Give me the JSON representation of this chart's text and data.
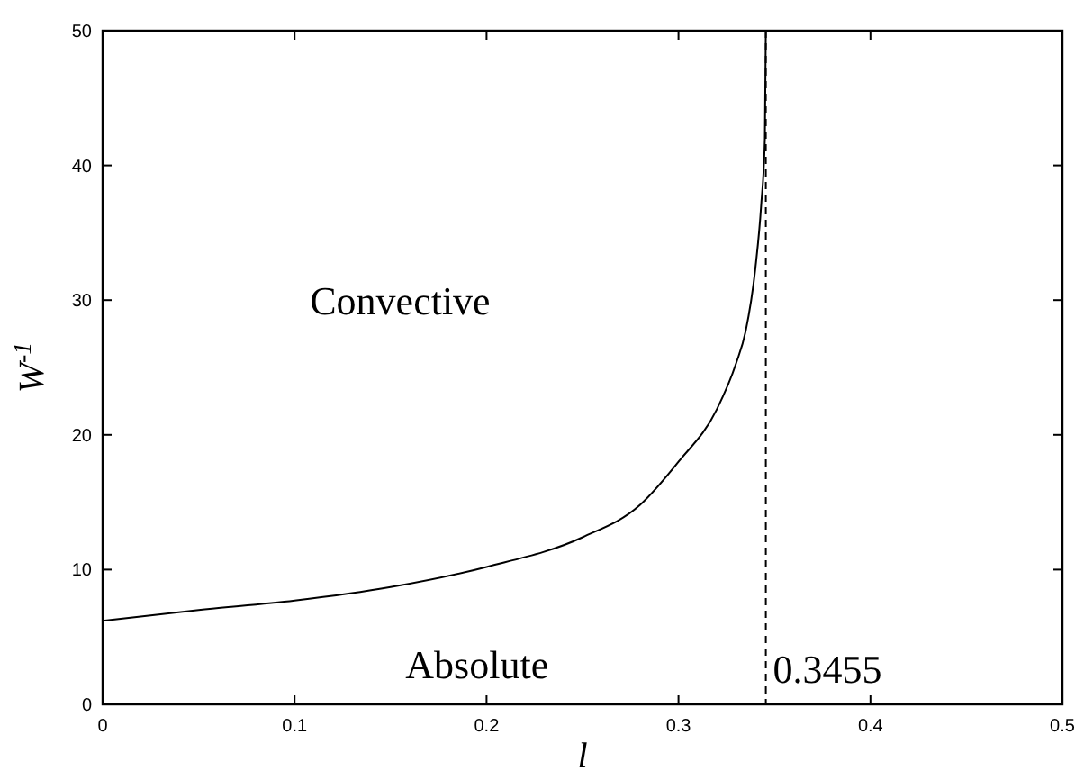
{
  "chart_data": {
    "type": "line",
    "xlabel": "l",
    "ylabel": "W$^{-1}$",
    "x": [
      0,
      0.05,
      0.1,
      0.15,
      0.2,
      0.25,
      0.28,
      0.3,
      0.32,
      0.33,
      0.335,
      0.34,
      0.343,
      0.345,
      0.3455
    ],
    "series": [
      {
        "color": "#000000",
        "values": [
          6.2,
          7.0,
          7.7,
          8.7,
          10.2,
          12.4,
          14.8,
          18.0,
          21.9,
          25.3,
          27.7,
          32.3,
          36.9,
          42,
          50
        ]
      }
    ],
    "xlim": [
      0,
      0.5
    ],
    "ylim": [
      0,
      50
    ],
    "xticks": [
      0,
      0.1,
      0.2,
      0.3,
      0.4,
      0.5
    ],
    "yticks": [
      0,
      10,
      20,
      30,
      40,
      50
    ],
    "ref_lines": [
      {
        "axis": "x",
        "value": 0.3455,
        "label": "0.3455",
        "line_style": "dashed",
        "color": "#000000"
      }
    ],
    "annotations": [
      "Convective",
      "Absolute"
    ],
    "grid": false,
    "marker": "none",
    "line_style": "solid"
  }
}
